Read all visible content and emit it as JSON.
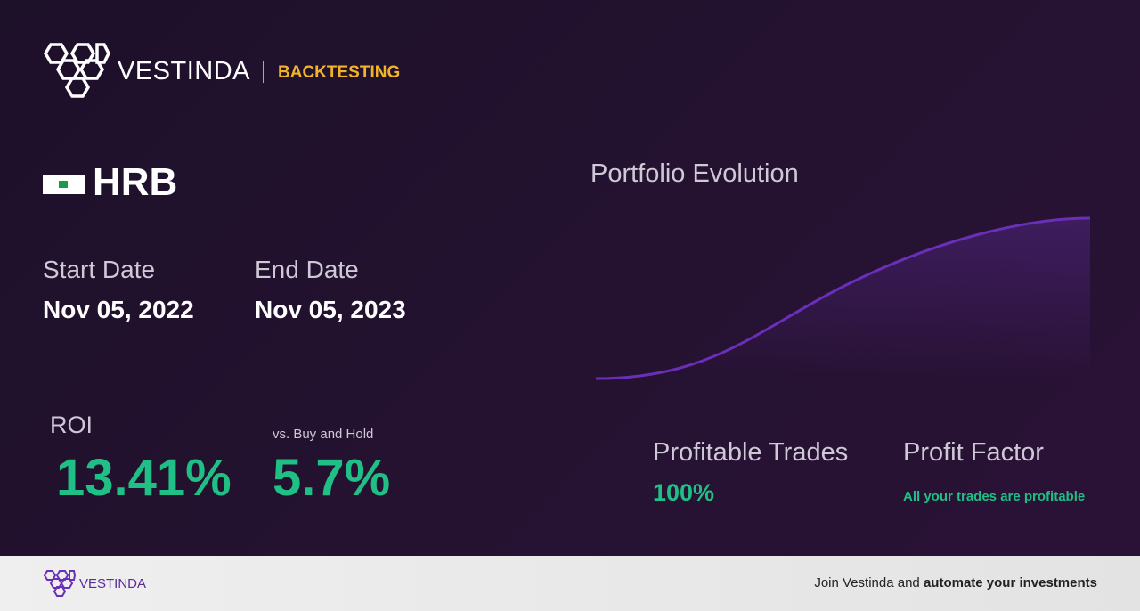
{
  "header": {
    "brand": "VESTINDA",
    "section": "BACKTESTING"
  },
  "ticker": "HRB",
  "dates": {
    "start_label": "Start Date",
    "start_value": "Nov 05, 2022",
    "end_label": "End Date",
    "end_value": "Nov 05, 2023"
  },
  "roi": {
    "label": "ROI",
    "value": "13.41%",
    "compare_label": "vs. Buy and Hold",
    "compare_value": "5.7%"
  },
  "chart": {
    "title": "Portfolio Evolution"
  },
  "stats": {
    "profitable_trades_label": "Profitable Trades",
    "profitable_trades_value": "100%",
    "profit_factor_label": "Profit Factor",
    "profit_factor_value": "All your trades are profitable"
  },
  "footer": {
    "brand": "VESTINDA",
    "cta_plain": "Join Vestinda and",
    "cta_bold": "automate your investments"
  }
}
